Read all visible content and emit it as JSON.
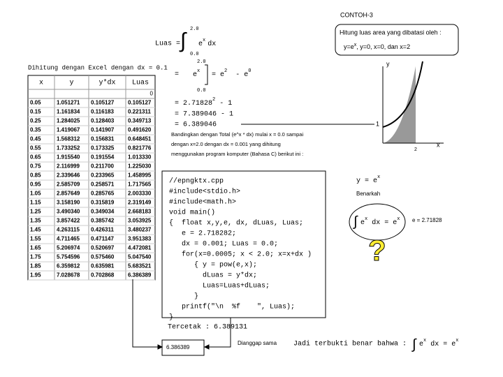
{
  "header": {
    "title": "CONTOH-3"
  },
  "problem": {
    "lhs": "Luas =",
    "upper": "2.0",
    "lower": "0.0",
    "integrand": "e",
    "exponent": "x",
    "dx": "dx"
  },
  "question": {
    "line1": "Hitung luas area yang dibatasi oleh :",
    "line2_a": "y=e",
    "line2_sup": "x",
    "line2_b": ",  y=0,  x=0,  dan  x=2"
  },
  "excel": {
    "caption": "Dihitung dengan Excel dengan dx = 0.1",
    "columns": [
      "x",
      "y",
      "y*dx",
      "Luas"
    ],
    "first_luas": "0",
    "rows": [
      [
        "0.05",
        "1.051271",
        "0.105127",
        "0.105127"
      ],
      [
        "0.15",
        "1.161834",
        "0.116183",
        "0.221311"
      ],
      [
        "0.25",
        "1.284025",
        "0.128403",
        "0.349713"
      ],
      [
        "0.35",
        "1.419067",
        "0.141907",
        "0.491620"
      ],
      [
        "0.45",
        "1.568312",
        "0.156831",
        "0.648451"
      ],
      [
        "0.55",
        "1.733252",
        "0.173325",
        "0.821776"
      ],
      [
        "0.65",
        "1.915540",
        "0.191554",
        "1.013330"
      ],
      [
        "0.75",
        "2.116999",
        "0.211700",
        "1.225030"
      ],
      [
        "0.85",
        "2.339646",
        "0.233965",
        "1.458995"
      ],
      [
        "0.95",
        "2.585709",
        "0.258571",
        "1.717565"
      ],
      [
        "1.05",
        "2.857649",
        "0.285765",
        "2.003330"
      ],
      [
        "1.15",
        "3.158190",
        "0.315819",
        "2.319149"
      ],
      [
        "1.25",
        "3.490340",
        "0.349034",
        "2.668183"
      ],
      [
        "1.35",
        "3.857422",
        "0.385742",
        "3.053925"
      ],
      [
        "1.45",
        "4.263115",
        "0.426311",
        "3.480237"
      ],
      [
        "1.55",
        "4.711465",
        "0.471147",
        "3.951383"
      ],
      [
        "1.65",
        "5.206974",
        "0.520697",
        "4.472081"
      ],
      [
        "1.75",
        "5.754596",
        "0.575460",
        "5.047540"
      ],
      [
        "1.85",
        "6.359812",
        "0.635981",
        "5.683521"
      ],
      [
        "1.95",
        "7.028678",
        "0.702868",
        "6.386389"
      ]
    ]
  },
  "solution": {
    "eq": "=",
    "base": "e",
    "exp": "x",
    "upper": "2.0",
    "lower": "0.0",
    "rhs_a": "= e",
    "rhs_exp1": "2",
    "rhs_b": "  - e",
    "rhs_exp2": "0",
    "step2_a": "= 2.71828",
    "step2_exp": "2",
    "step2_b": " - 1",
    "step3": "= 7.389046 - 1",
    "step4": "= 6.389046"
  },
  "compare": {
    "lines": [
      "Bandingkan dengan Total (e^x * dx) mulai x = 0.0 sampai",
      "dengan x=2.0 dengan dx = 0.001 yang dihitung",
      "menggunakan program komputer (Bahasa C) berikut ini :"
    ]
  },
  "code": {
    "lines": [
      "//epngktx.cpp",
      "#include<stdio.h>",
      "#include<math.h>",
      "void main()",
      "{  float x,y,e, dx, dLuas, Luas;",
      "   e = 2.718282;",
      "   dx = 0.001; Luas = 0.0;",
      "   for(x=0.0005; x < 2.0; x=x+dx )",
      "      { y = pow(e,x);",
      "        dLuas = y*dx;",
      "        Luas=Luas+dLuas;",
      "      }",
      "   printf(\"\\n  %f    \", Luas);",
      "}"
    ]
  },
  "result": {
    "printed": "Tercetak : 6.389131",
    "excel_value": "6.386389",
    "note": "Dianggap sama"
  },
  "graph": {
    "y_label": "y",
    "x_label": "x",
    "y_mark": "1",
    "x_mark": "2"
  },
  "check": {
    "func_a": "y = e",
    "func_sup": "x",
    "question": "Benarkah",
    "int_a": "e",
    "int_sup1": "x",
    "int_b": " dx = e",
    "int_sup2": "x",
    "e_value": "e = 2.71828",
    "mark": "?"
  },
  "conclusion": {
    "text": "Jadi terbukti benar bahwa :",
    "int_a": "e",
    "int_sup1": "x",
    "int_b": " dx = e",
    "int_sup2": "x"
  }
}
